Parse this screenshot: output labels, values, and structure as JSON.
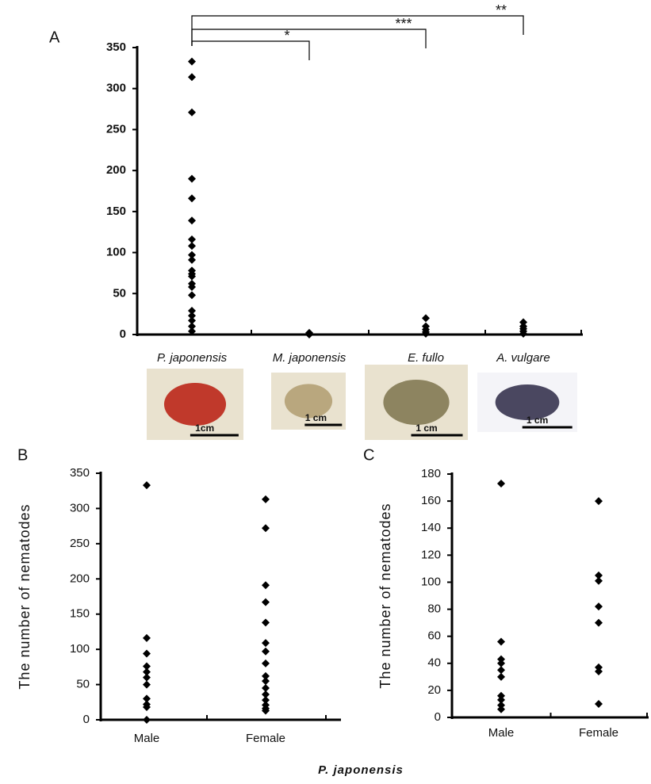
{
  "chart_data": [
    {
      "type": "strip",
      "panel_label": "A",
      "color": "#000000",
      "groups": [
        {
          "name": "P. japonensis",
          "values": [
            333,
            314,
            271,
            190,
            166,
            139,
            116,
            108,
            97,
            91,
            78,
            74,
            71,
            62,
            58,
            48,
            29,
            23,
            17,
            10,
            4
          ]
        },
        {
          "name": "M. japonensis",
          "values": [
            2,
            1,
            0
          ]
        },
        {
          "name": "E. fullo",
          "values": [
            20,
            10,
            6,
            3,
            1
          ]
        },
        {
          "name": "A. vulgare",
          "values": [
            15,
            10,
            7,
            4,
            1
          ]
        }
      ],
      "significance": [
        "*",
        "***",
        "**"
      ],
      "image_labels": [
        "1cm",
        "1 cm",
        "1 cm",
        "1 cm"
      ],
      "ylim": [
        0,
        350
      ],
      "yticks": [
        0,
        50,
        100,
        150,
        200,
        250,
        300,
        350
      ]
    },
    {
      "type": "strip",
      "panel_label": "B",
      "color": "#000000",
      "ylabel": "The number of nematodes",
      "groups": [
        {
          "name": "Male",
          "values": [
            333,
            116,
            94,
            76,
            68,
            60,
            50,
            30,
            22,
            18,
            0
          ]
        },
        {
          "name": "Female",
          "values": [
            313,
            272,
            191,
            167,
            138,
            109,
            97,
            80,
            62,
            55,
            45,
            36,
            28,
            21,
            16,
            13
          ]
        }
      ],
      "ylim": [
        0,
        350
      ],
      "yticks": [
        0,
        50,
        100,
        150,
        200,
        250,
        300,
        350
      ]
    },
    {
      "type": "strip",
      "panel_label": "C",
      "color": "#000000",
      "ylabel": "The number of nematodes",
      "groups": [
        {
          "name": "Male",
          "values": [
            173,
            56,
            43,
            40,
            35,
            30,
            16,
            13,
            9,
            6
          ]
        },
        {
          "name": "Female",
          "values": [
            160,
            105,
            101,
            82,
            70,
            37,
            34,
            10
          ]
        }
      ],
      "ylim": [
        0,
        180
      ],
      "yticks": [
        0,
        20,
        40,
        60,
        80,
        100,
        120,
        140,
        160,
        180
      ],
      "xlabel": "P. japonensis"
    }
  ]
}
